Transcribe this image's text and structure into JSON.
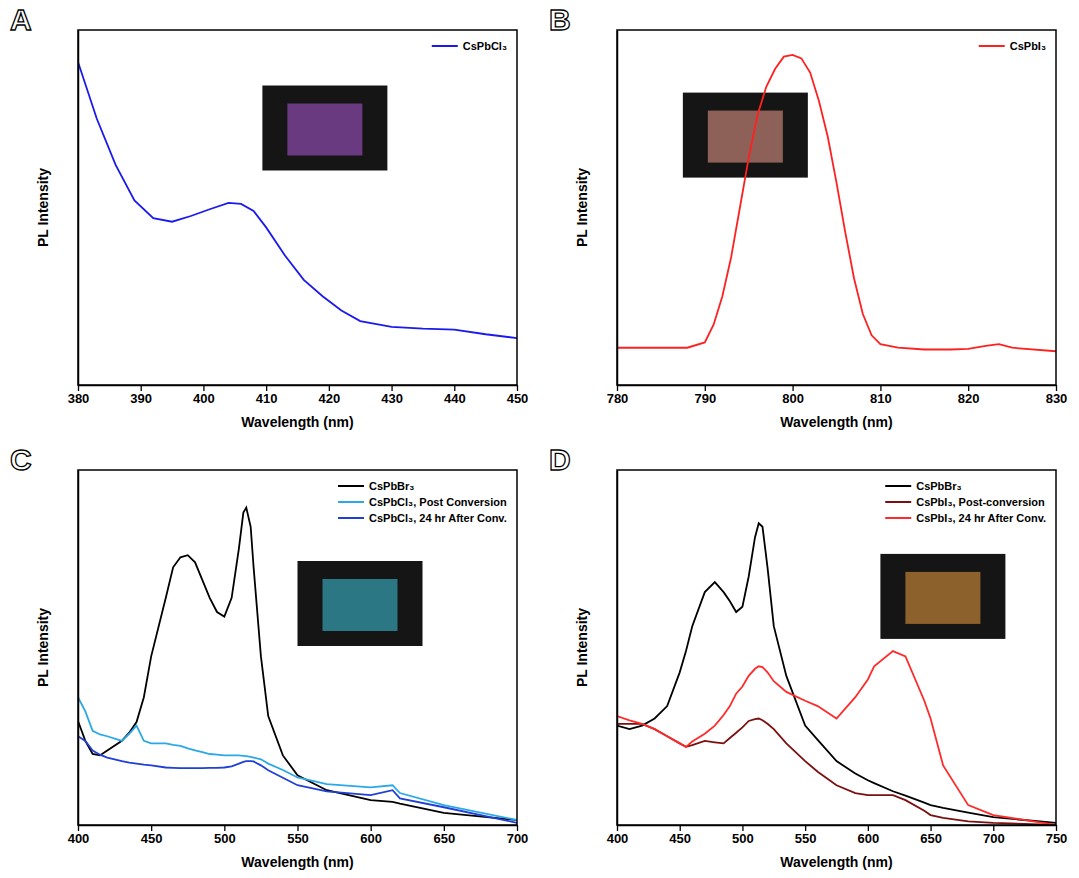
{
  "chart_data": [
    {
      "type": "line",
      "title": "A",
      "x_label": "Wavelength (nm)",
      "y_label": "PL Intensity",
      "tick_labels": "x",
      "legend": "top-right",
      "xlim": [
        380,
        450
      ],
      "xticks": [
        380,
        390,
        400,
        410,
        420,
        430,
        440,
        450
      ],
      "ylim": [
        0,
        100
      ],
      "x": [
        380,
        383,
        386,
        389,
        392,
        395,
        398,
        401,
        404,
        406,
        408,
        410,
        413,
        416,
        419,
        422,
        425,
        430,
        435,
        440,
        445,
        450
      ],
      "series": [
        {
          "name": "CsPbCl₃",
          "color": "#1a1aee",
          "values": [
            91,
            75,
            62,
            52,
            47,
            46,
            47.6,
            49.5,
            51.3,
            51,
            49,
            44.4,
            36.5,
            29.6,
            25,
            21,
            18,
            16.4,
            15.9,
            15.6,
            14.3,
            13.2
          ]
        }
      ]
    },
    {
      "type": "line",
      "title": "B",
      "x_label": "Wavelength (nm)",
      "y_label": "PL Intensity",
      "tick_labels": "x",
      "legend": "top-right",
      "xlim": [
        780,
        830
      ],
      "xticks": [
        780,
        790,
        800,
        810,
        820,
        830
      ],
      "ylim": [
        0,
        100
      ],
      "x": [
        780,
        785,
        788,
        790,
        791,
        792,
        793,
        794,
        795,
        796,
        797,
        798,
        799,
        800,
        801,
        802,
        803,
        804,
        805,
        806,
        807,
        808,
        809,
        810,
        812,
        815,
        818,
        820,
        822,
        823.5,
        825,
        830
      ],
      "series": [
        {
          "name": "CsPbI₃",
          "color": "#ff2020",
          "values": [
            10.5,
            10.5,
            10.5,
            12,
            17,
            25,
            36,
            50,
            64,
            76,
            84,
            89,
            92.5,
            93,
            92,
            88,
            80,
            70,
            57,
            43,
            30,
            20,
            14,
            11.5,
            10.5,
            10,
            10,
            10.2,
            11,
            11.5,
            10.5,
            9.5
          ]
        }
      ]
    },
    {
      "type": "line",
      "title": "C",
      "x_label": "Wavelength (nm)",
      "y_label": "PL Intensity",
      "tick_labels": "x",
      "legend": "top-right",
      "xlim": [
        400,
        700
      ],
      "xticks": [
        400,
        450,
        500,
        550,
        600,
        650,
        700
      ],
      "ylim": [
        0,
        100
      ],
      "x": [
        400,
        405,
        410,
        415,
        420,
        430,
        435,
        440,
        445,
        450,
        460,
        465,
        470,
        475,
        480,
        485,
        490,
        495,
        500,
        505,
        510,
        513,
        515,
        518,
        520,
        525,
        530,
        540,
        550,
        570,
        600,
        615,
        620,
        650,
        700
      ],
      "series": [
        {
          "name": "CsPbBr₃",
          "color": "#000000",
          "values": [
            29.3,
            23.7,
            20,
            19.6,
            21,
            23.7,
            26,
            29,
            36,
            47.5,
            64,
            72.6,
            75.4,
            76,
            74,
            69,
            64,
            60,
            58.7,
            64,
            78,
            88,
            89.4,
            84,
            72.6,
            47.5,
            30.7,
            19.6,
            14,
            9.8,
            7,
            6.5,
            6,
            3.4,
            1.4
          ]
        },
        {
          "name": "CsPbCl₃, Post Conversion",
          "color": "#2aa8e8",
          "values": [
            36,
            32,
            26.5,
            25.5,
            25,
            23.7,
            25.7,
            28,
            23.7,
            23,
            23,
            22.6,
            22.3,
            21.6,
            21,
            20.5,
            20,
            19.8,
            19.6,
            19.6,
            19.6,
            19.5,
            19.4,
            19.2,
            19,
            18.5,
            17.3,
            15.5,
            13.4,
            11.5,
            10.6,
            11.2,
            9,
            5.6,
            1.4
          ]
        },
        {
          "name": "CsPbCl₃, 24 hr After Conv.",
          "color": "#1f3fd6",
          "values": [
            25,
            23.7,
            21,
            19.8,
            19,
            18,
            17.6,
            17.3,
            17,
            16.8,
            16.2,
            16.1,
            16,
            16,
            16,
            16,
            16.1,
            16.1,
            16.2,
            16.5,
            17.3,
            17.8,
            18,
            18,
            17.9,
            16.8,
            15.4,
            13.3,
            11.2,
            9.5,
            8.4,
            9.8,
            7.5,
            5,
            0.6
          ]
        }
      ]
    },
    {
      "type": "line",
      "title": "D",
      "x_label": "Wavelength (nm)",
      "y_label": "PL Intensity",
      "tick_labels": "x",
      "legend": "top-right",
      "xlim": [
        400,
        750
      ],
      "xticks": [
        400,
        450,
        500,
        550,
        600,
        650,
        700,
        750
      ],
      "ylim": [
        0,
        100
      ],
      "x": [
        400,
        410,
        420,
        430,
        440,
        450,
        455,
        460,
        470,
        478,
        485,
        490,
        495,
        500,
        505,
        510,
        513,
        516,
        520,
        525,
        535,
        550,
        560,
        575,
        590,
        600,
        605,
        620,
        630,
        645,
        650,
        660,
        680,
        700,
        750
      ],
      "series": [
        {
          "name": "CsPbBr₃",
          "color": "#000000",
          "values": [
            28,
            27,
            28,
            30,
            33.5,
            43,
            49,
            56,
            65.6,
            68.4,
            65.6,
            63,
            60,
            61.5,
            70,
            81,
            85,
            84,
            72.6,
            56,
            42,
            28,
            24,
            18,
            14.5,
            12.6,
            11.8,
            9.5,
            8.3,
            6.3,
            5.6,
            4.8,
            3.5,
            2.2,
            0.6
          ]
        },
        {
          "name": "CsPbI₃, Post-conversion",
          "color": "#7b1010",
          "values": [
            28.5,
            28.5,
            28.5,
            27,
            25,
            23,
            22,
            22.5,
            23.7,
            23.3,
            23,
            24.5,
            26,
            27.5,
            29.3,
            29.8,
            30,
            29.5,
            28.5,
            27,
            23,
            18,
            15,
            11.2,
            9,
            8.4,
            8.4,
            8.4,
            7,
            4,
            2.8,
            2,
            1,
            0.6,
            0
          ]
        },
        {
          "name": "CsPbI₃, 24 hr After Conv.",
          "color": "#ff2a2a",
          "values": [
            30.7,
            29.5,
            28.5,
            27,
            25,
            23,
            22,
            23.5,
            25.7,
            28,
            31,
            33.5,
            37,
            39,
            42,
            44,
            44.7,
            44.5,
            43,
            40.5,
            37.5,
            35,
            33.5,
            30,
            36,
            41,
            44.7,
            49,
            47.5,
            35,
            30,
            16.8,
            5.6,
            2.8,
            0
          ]
        }
      ]
    }
  ]
}
